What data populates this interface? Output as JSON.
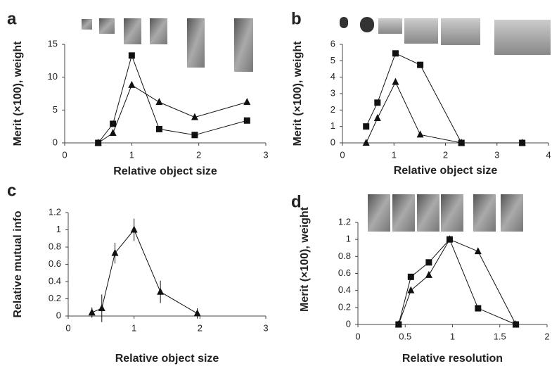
{
  "chart_data": [
    {
      "type": "line",
      "panel_label": "a",
      "y_label": "Merit (×100), weight",
      "x_label": "Relative object size",
      "xlim": [
        0,
        3
      ],
      "xticks": [
        0,
        1,
        2,
        3
      ],
      "ylim": [
        0,
        15
      ],
      "yticks": [
        0,
        5,
        10,
        15
      ],
      "x": [
        0.5,
        0.72,
        1.0,
        1.41,
        1.94,
        2.72
      ],
      "series": [
        {
          "marker": "square",
          "color": "#111111",
          "values": [
            0,
            2.9,
            13.3,
            2.1,
            1.2,
            3.4
          ]
        },
        {
          "marker": "triangle",
          "color": "#111111",
          "values": [
            0,
            1.5,
            8.8,
            6.2,
            3.9,
            6.2
          ]
        }
      ]
    },
    {
      "type": "line",
      "panel_label": "b",
      "y_label": "Merit (×100), weight",
      "x_label": "Relative object size",
      "xlim": [
        0,
        4
      ],
      "xticks": [
        0,
        1,
        2,
        3,
        4
      ],
      "ylim": [
        0,
        6
      ],
      "yticks": [
        0,
        1,
        2,
        3,
        4,
        5,
        6
      ],
      "x": [
        0.46,
        0.68,
        1.03,
        1.51,
        2.31,
        3.49
      ],
      "series": [
        {
          "marker": "square",
          "color": "#111111",
          "values": [
            1.0,
            2.45,
            5.45,
            4.75,
            0,
            0
          ]
        },
        {
          "marker": "triangle",
          "color": "#111111",
          "values": [
            0,
            1.5,
            3.7,
            0.5,
            0,
            0
          ]
        }
      ]
    },
    {
      "type": "line",
      "panel_label": "c",
      "y_label": "Relative mutual info",
      "x_label": "Relative object size",
      "xlim": [
        0,
        3
      ],
      "xticks": [
        0,
        1,
        2,
        3
      ],
      "ylim": [
        0,
        1.2
      ],
      "yticks": [
        0,
        0.2,
        0.4,
        0.6,
        0.8,
        1,
        1.2
      ],
      "x": [
        0.36,
        0.51,
        0.71,
        1.0,
        1.4,
        1.96
      ],
      "series": [
        {
          "marker": "triangle",
          "color": "#111111",
          "values": [
            0.04,
            0.09,
            0.73,
            1.0,
            0.28,
            0.03
          ],
          "errors": [
            0.06,
            0.16,
            0.12,
            0.13,
            0.13,
            0.06
          ]
        }
      ]
    },
    {
      "type": "line",
      "panel_label": "d",
      "y_label": "Merit (×100), weight",
      "x_label": "Relative resolution",
      "xlim": [
        0,
        2
      ],
      "xticks": [
        0,
        0.5,
        1,
        1.5,
        2
      ],
      "ylim": [
        0,
        1.2
      ],
      "yticks": [
        0,
        0.2,
        0.4,
        0.6,
        0.8,
        1,
        1.2
      ],
      "x": [
        0.43,
        0.56,
        0.75,
        0.97,
        1.27,
        1.67
      ],
      "series": [
        {
          "marker": "square",
          "color": "#111111",
          "values": [
            0,
            0.56,
            0.73,
            1.0,
            0.19,
            0
          ]
        },
        {
          "marker": "triangle",
          "color": "#111111",
          "values": [
            0,
            0.4,
            0.58,
            1.0,
            0.86,
            0
          ]
        }
      ]
    }
  ]
}
